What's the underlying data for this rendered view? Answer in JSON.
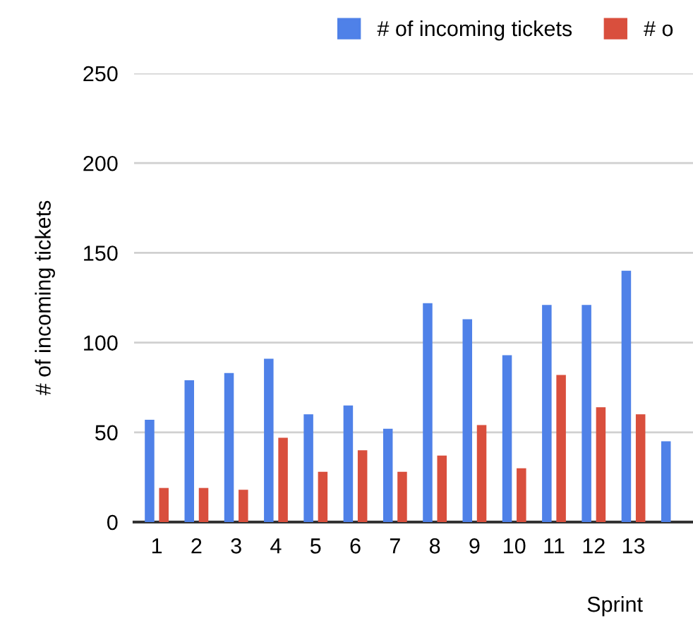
{
  "chart_data": {
    "type": "bar",
    "ylabel": "# of incoming tickets",
    "xlabel": "Sprint",
    "categories": [
      "1",
      "2",
      "3",
      "4",
      "5",
      "6",
      "7",
      "8",
      "9",
      "10",
      "11",
      "12",
      "13",
      null
    ],
    "series": [
      {
        "name": "# of incoming tickets",
        "color": "#4f81e8",
        "values": [
          57,
          79,
          83,
          91,
          60,
          65,
          52,
          122,
          113,
          93,
          121,
          121,
          140,
          45
        ]
      },
      {
        "name": "# o",
        "color": "#d94f3d",
        "values": [
          19,
          19,
          18,
          47,
          28,
          40,
          28,
          37,
          54,
          30,
          82,
          64,
          60,
          null
        ]
      }
    ],
    "ylim": [
      0,
      250
    ],
    "yticks": [
      0,
      50,
      100,
      150,
      200,
      250
    ],
    "grid": "y",
    "legend": "top"
  }
}
